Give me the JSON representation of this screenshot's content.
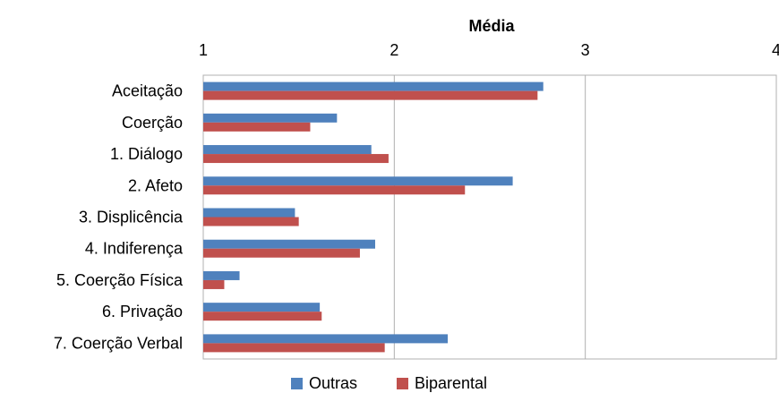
{
  "chart_data": {
    "type": "bar",
    "orientation": "horizontal",
    "xlabel": "Média",
    "ylabel": "",
    "xlim": [
      1,
      4
    ],
    "xticks": [
      "1",
      "2",
      "3",
      "4"
    ],
    "x_axis_position": "top",
    "grid": true,
    "legend_position": "bottom",
    "categories": [
      "Aceitação",
      "Coerção",
      "1. Diálogo",
      "2. Afeto",
      "3. Displicência",
      "4. Indiferença",
      "5. Coerção Física",
      "6. Privação",
      "7. Coerção Verbal"
    ],
    "series": [
      {
        "name": "Outras",
        "color": "#4f81bd",
        "values": [
          2.78,
          1.7,
          1.88,
          2.62,
          1.48,
          1.9,
          1.19,
          1.61,
          2.28
        ]
      },
      {
        "name": "Biparental",
        "color": "#c0504d",
        "values": [
          2.75,
          1.56,
          1.97,
          2.37,
          1.5,
          1.82,
          1.11,
          1.62,
          1.95
        ]
      }
    ]
  }
}
